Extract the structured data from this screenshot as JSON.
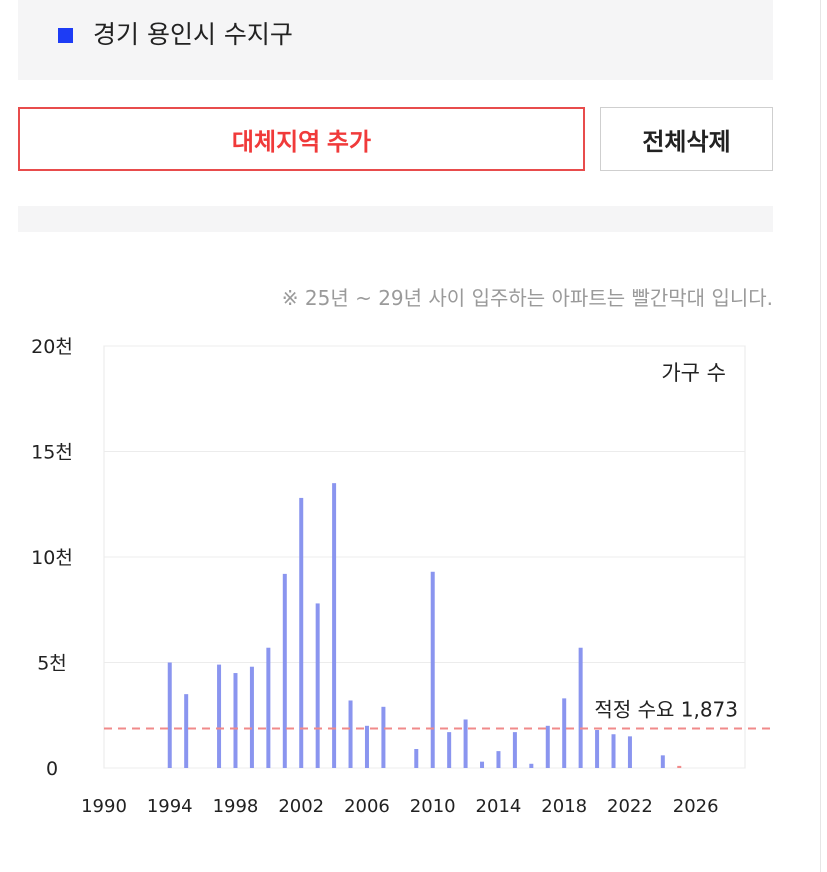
{
  "region": {
    "name": "경기 용인시 수지구",
    "marker_color": "#1d3cf5"
  },
  "buttons": {
    "add_label": "대체지역 추가",
    "delete_all_label": "전체삭제"
  },
  "notice": "※ 25년 ~ 29년 사이 입주하는 아파트는 빨간막대 입니다.",
  "chart_data": {
    "type": "bar",
    "legend_label": "가구 수",
    "bar_color": "#8a95ef",
    "future_bar_color": "#f28b8b",
    "y_ticks": [
      {
        "value": 0,
        "label": "0"
      },
      {
        "value": 5000,
        "label": "5천"
      },
      {
        "value": 10000,
        "label": "10천"
      },
      {
        "value": 15000,
        "label": "15천"
      },
      {
        "value": 20000,
        "label": "20천"
      }
    ],
    "ylim": [
      0,
      20000
    ],
    "xlim": [
      1990,
      2029
    ],
    "x_ticks": [
      1990,
      1994,
      1998,
      2002,
      2006,
      2010,
      2014,
      2018,
      2022,
      2026
    ],
    "grid": true,
    "reference_line": {
      "value": 1873,
      "label": "적정 수요 1,873",
      "color": "#f08a8a"
    },
    "series": [
      {
        "points": [
          {
            "x": 1994,
            "y": 5000
          },
          {
            "x": 1995,
            "y": 3500
          },
          {
            "x": 1997,
            "y": 4900
          },
          {
            "x": 1998,
            "y": 4500
          },
          {
            "x": 1999,
            "y": 4800
          },
          {
            "x": 2000,
            "y": 5700
          },
          {
            "x": 2001,
            "y": 9200
          },
          {
            "x": 2002,
            "y": 12800
          },
          {
            "x": 2003,
            "y": 7800
          },
          {
            "x": 2004,
            "y": 13500
          },
          {
            "x": 2005,
            "y": 3200
          },
          {
            "x": 2006,
            "y": 2000
          },
          {
            "x": 2007,
            "y": 2900
          },
          {
            "x": 2009,
            "y": 900
          },
          {
            "x": 2010,
            "y": 9300
          },
          {
            "x": 2011,
            "y": 1700
          },
          {
            "x": 2012,
            "y": 2300
          },
          {
            "x": 2013,
            "y": 300
          },
          {
            "x": 2014,
            "y": 800
          },
          {
            "x": 2015,
            "y": 1700
          },
          {
            "x": 2016,
            "y": 200
          },
          {
            "x": 2017,
            "y": 2000
          },
          {
            "x": 2018,
            "y": 3300
          },
          {
            "x": 2019,
            "y": 5700
          },
          {
            "x": 2020,
            "y": 1800
          },
          {
            "x": 2021,
            "y": 1600
          },
          {
            "x": 2022,
            "y": 1500
          },
          {
            "x": 2024,
            "y": 600
          },
          {
            "x": 2025,
            "y": 100,
            "future": true
          }
        ]
      }
    ]
  }
}
